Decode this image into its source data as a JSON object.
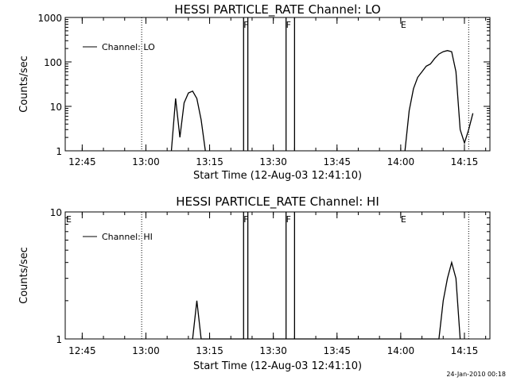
{
  "chart_data": [
    {
      "type": "line",
      "title": "HESSI PARTICLE_RATE Channel: LO",
      "xlabel": "Start Time (12-Aug-03 12:41:10)",
      "ylabel": "Counts/sec",
      "y_scale": "log",
      "xlim": [
        "12:41",
        "14:21"
      ],
      "ylim": [
        1,
        1000
      ],
      "x_ticks": [
        "12:45",
        "13:00",
        "13:15",
        "13:30",
        "13:45",
        "14:00",
        "14:15"
      ],
      "y_ticks": [
        "1",
        "10",
        "100",
        "1000"
      ],
      "legend": "top-left",
      "series": [
        {
          "name": "Channel: LO",
          "x": [
            "13:06",
            "13:07",
            "13:08",
            "13:09",
            "13:10",
            "13:11",
            "13:12",
            "13:13",
            "13:14",
            "13:15",
            "13:16",
            "13:17",
            "14:01",
            "14:02",
            "14:03",
            "14:04",
            "14:05",
            "14:06",
            "14:07",
            "14:08",
            "14:09",
            "14:10",
            "14:11",
            "14:12",
            "14:13",
            "14:14",
            "14:15",
            "14:16",
            "14:17"
          ],
          "values": [
            1,
            15,
            2,
            12,
            20,
            22,
            15,
            5,
            1,
            null,
            null,
            null,
            1,
            8,
            25,
            45,
            60,
            80,
            90,
            120,
            150,
            170,
            180,
            170,
            60,
            3,
            1.5,
            3,
            7
          ]
        }
      ],
      "markers": [
        {
          "label": "F",
          "x": "13:23"
        },
        {
          "label": "F",
          "x": "13:33"
        },
        {
          "label": "E",
          "x": "14:00"
        }
      ],
      "bands": [
        [
          "13:23",
          "13:24"
        ],
        [
          "13:33",
          "13:35"
        ]
      ],
      "dotted_lines": [
        "12:59",
        "14:16"
      ]
    },
    {
      "type": "line",
      "title": "HESSI PARTICLE_RATE Channel: HI",
      "xlabel": "Start Time (12-Aug-03 12:41:10)",
      "ylabel": "Counts/sec",
      "y_scale": "log",
      "xlim": [
        "12:41",
        "14:21"
      ],
      "ylim": [
        1,
        10
      ],
      "x_ticks": [
        "12:45",
        "13:00",
        "13:15",
        "13:30",
        "13:45",
        "14:00",
        "14:15"
      ],
      "y_ticks": [
        "1",
        "10"
      ],
      "legend": "top-left",
      "series": [
        {
          "name": "Channel: HI",
          "x": [
            "13:11",
            "13:12",
            "13:13",
            "14:09",
            "14:10",
            "14:11",
            "14:12",
            "14:13",
            "14:14"
          ],
          "values": [
            1,
            2,
            1,
            1,
            2,
            3,
            4,
            3,
            1
          ]
        }
      ],
      "markers": [
        {
          "label": "E",
          "x": "12:41"
        },
        {
          "label": "F",
          "x": "13:23"
        },
        {
          "label": "F",
          "x": "13:33"
        },
        {
          "label": "E",
          "x": "14:00"
        }
      ],
      "bands": [
        [
          "13:23",
          "13:24"
        ],
        [
          "13:33",
          "13:35"
        ]
      ],
      "dotted_lines": [
        "12:59",
        "14:16"
      ]
    }
  ],
  "footer": {
    "timestamp": "24-Jan-2010 00:18"
  },
  "colors": {
    "line": "#000000",
    "background": "#ffffff"
  }
}
